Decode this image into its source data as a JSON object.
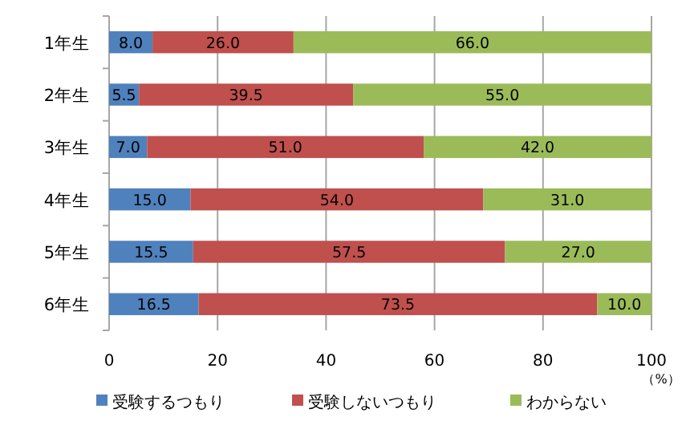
{
  "chart_data": {
    "type": "bar",
    "orientation": "horizontal",
    "stacked": true,
    "categories": [
      "1年生",
      "2年生",
      "3年生",
      "4年生",
      "5年生",
      "6年生"
    ],
    "series": [
      {
        "name": "受験するつもり",
        "color": "#4f81bd",
        "values": [
          8.0,
          5.5,
          7.0,
          15.0,
          15.5,
          16.5
        ],
        "value_labels": [
          "8.0",
          "5.5",
          "7.0",
          "15.0",
          "15.5",
          "16.5"
        ]
      },
      {
        "name": "受験しないつもり",
        "color": "#c0504d",
        "values": [
          26.0,
          39.5,
          51.0,
          54.0,
          57.5,
          73.5
        ],
        "value_labels": [
          "26.0",
          "39.5",
          "51.0",
          "54.0",
          "57.5",
          "73.5"
        ]
      },
      {
        "name": "わからない",
        "color": "#9bbb59",
        "values": [
          66.0,
          55.0,
          42.0,
          31.0,
          27.0,
          10.0
        ],
        "value_labels": [
          "66.0",
          "55.0",
          "42.0",
          "31.0",
          "27.0",
          "10.0"
        ]
      }
    ],
    "xlim": [
      0,
      100
    ],
    "xticks": [
      0,
      20,
      40,
      60,
      80,
      100
    ],
    "xlabel": "（%）",
    "grid": "x",
    "legend": "bottom"
  }
}
